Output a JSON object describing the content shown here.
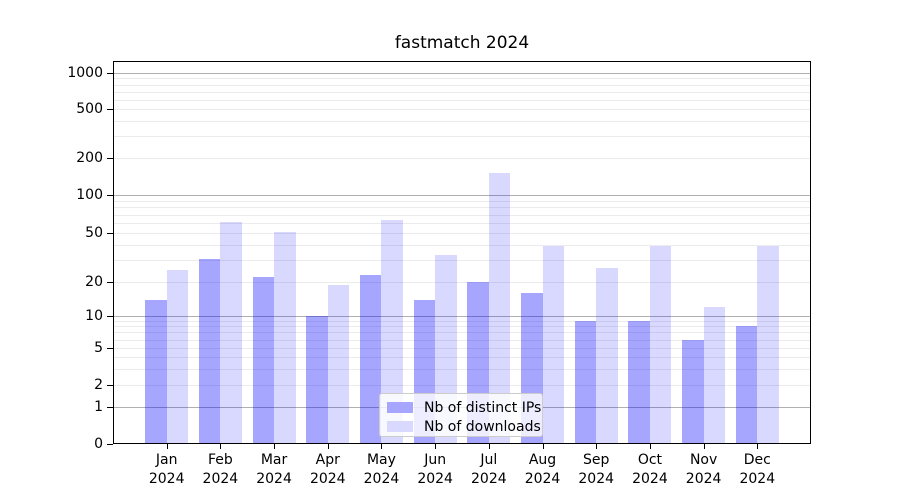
{
  "figure": {
    "title": "fastmatch 2024"
  },
  "y_axis": {
    "tick_labels": [
      "0",
      "1",
      "2",
      "5",
      "10",
      "20",
      "50",
      "100",
      "200",
      "500",
      "1000"
    ]
  },
  "x_axis": {
    "months": [
      "Jan",
      "Feb",
      "Mar",
      "Apr",
      "May",
      "Jun",
      "Jul",
      "Aug",
      "Sep",
      "Oct",
      "Nov",
      "Dec"
    ],
    "year": "2024"
  },
  "legend": {
    "items": [
      {
        "label": "Nb of distinct IPs",
        "swatch_color": "#a6a6ff"
      },
      {
        "label": "Nb of downloads",
        "swatch_color": "#d9d9ff"
      }
    ]
  },
  "colors": {
    "bar_distinct_ips": "rgba(0,0,255,0.35)",
    "bar_downloads": "rgba(0,0,255,0.15)",
    "grid_major": "#b0b0b0",
    "grid_minor": "#ebebeb"
  },
  "chart_data": {
    "type": "bar",
    "title": "fastmatch 2024",
    "categories": [
      "Jan 2024",
      "Feb 2024",
      "Mar 2024",
      "Apr 2024",
      "May 2024",
      "Jun 2024",
      "Jul 2024",
      "Aug 2024",
      "Sep 2024",
      "Oct 2024",
      "Nov 2024",
      "Dec 2024"
    ],
    "series": [
      {
        "name": "Nb of distinct IPs",
        "color": "#a6a6ff",
        "values": [
          14,
          31,
          22,
          10,
          23,
          14,
          20,
          16,
          9,
          9,
          6,
          8
        ]
      },
      {
        "name": "Nb of downloads",
        "color": "#d9d9ff",
        "values": [
          25,
          61,
          51,
          19,
          63,
          33,
          150,
          39,
          26,
          39,
          12,
          39
        ]
      }
    ],
    "xlabel": "",
    "ylabel": "",
    "yscale": "symlog",
    "y_tick_values": [
      0,
      1,
      2,
      5,
      10,
      20,
      50,
      100,
      200,
      500,
      1000
    ],
    "ylim": [
      0,
      1250
    ],
    "grid": "both-horizontal",
    "legend_position": "lower center"
  }
}
